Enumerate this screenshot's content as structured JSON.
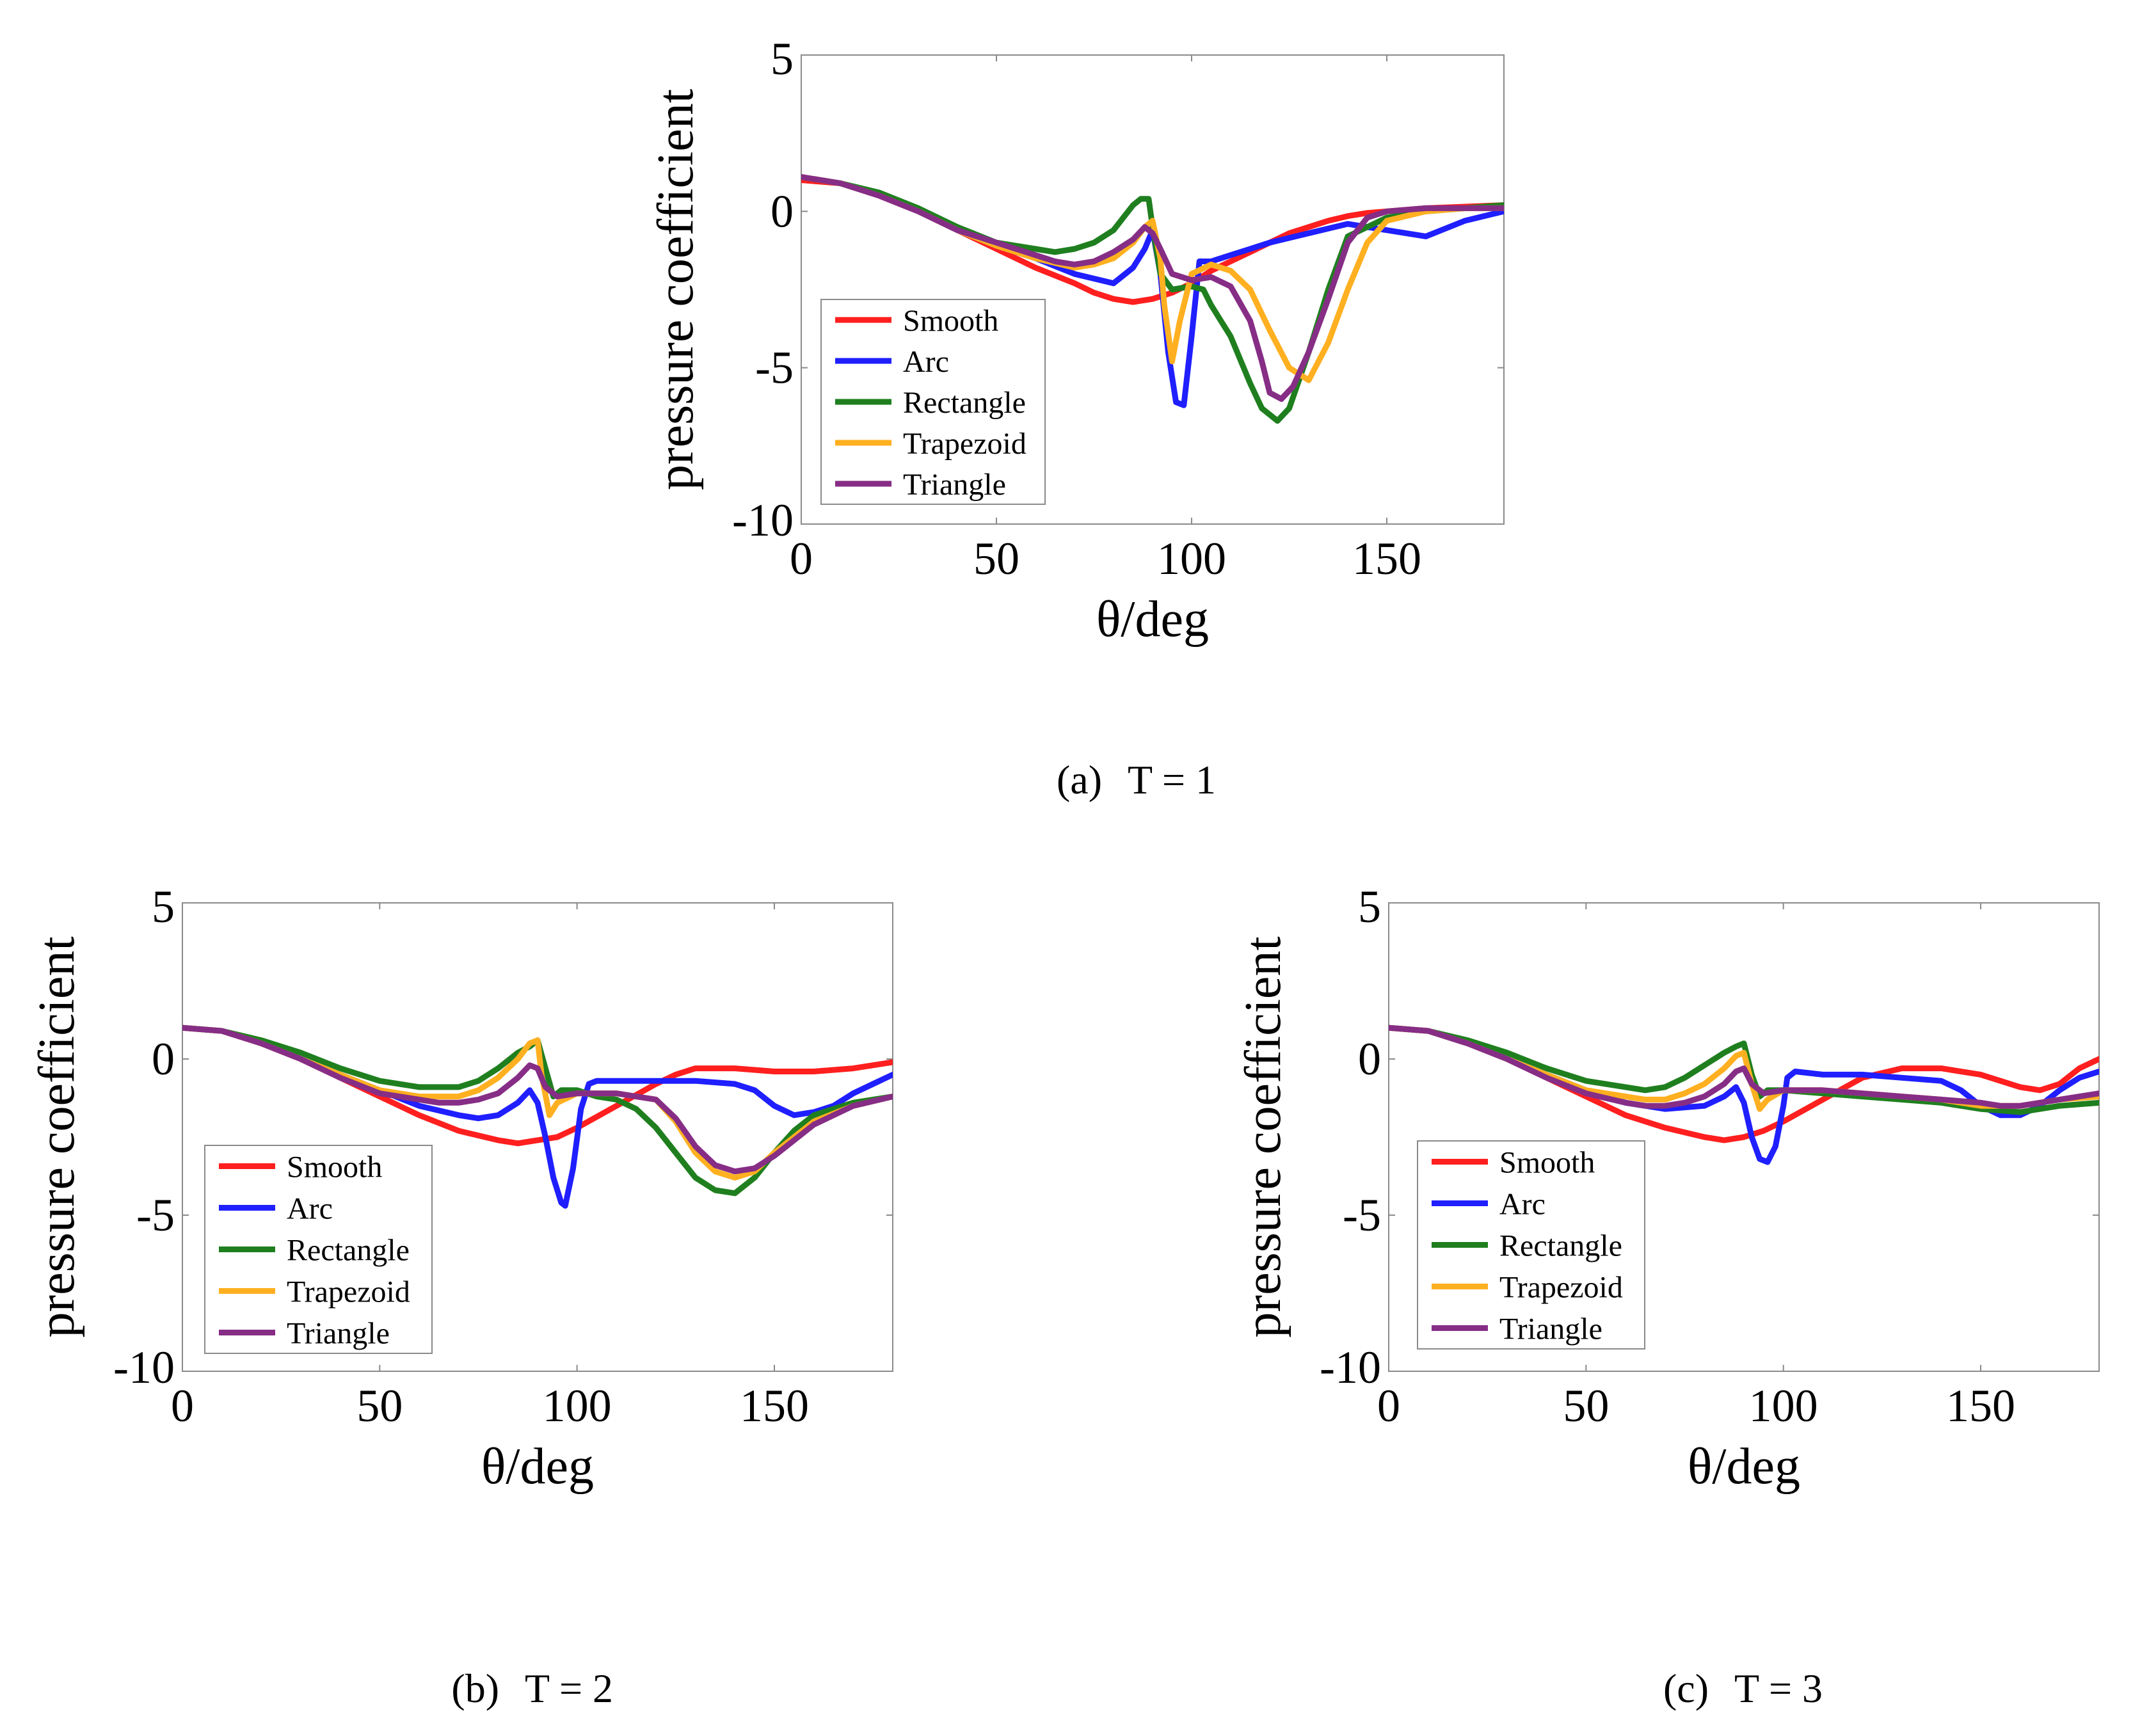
{
  "figure": {
    "legend_series_order": [
      "Smooth",
      "Arc",
      "Rectangle",
      "Trapezoid",
      "Triangle"
    ],
    "colors": {
      "Smooth": "#ff1f1f",
      "Arc": "#1f1fff",
      "Rectangle": "#1f7f1f",
      "Trapezoid": "#ffb020",
      "Triangle": "#862d86"
    }
  },
  "chart_data": [
    {
      "panel": "a",
      "type": "line",
      "caption_tag": "(a)",
      "caption_text": "T = 1",
      "xlabel": "θ/deg",
      "ylabel": "pressure coefficient",
      "xlim": [
        0,
        180
      ],
      "ylim": [
        -10,
        5
      ],
      "xticks": [
        0,
        50,
        100,
        150
      ],
      "yticks": [
        5,
        0,
        -5,
        -10
      ],
      "legend": "bottom-left",
      "series": [
        {
          "name": "Smooth",
          "x": [
            0,
            10,
            20,
            30,
            40,
            50,
            60,
            70,
            75,
            80,
            85,
            90,
            95,
            100,
            105,
            110,
            115,
            120,
            125,
            130,
            135,
            140,
            145,
            150,
            160,
            170,
            180
          ],
          "y": [
            1,
            0.9,
            0.5,
            0,
            -0.6,
            -1.2,
            -1.8,
            -2.3,
            -2.6,
            -2.8,
            -2.9,
            -2.8,
            -2.6,
            -2.3,
            -1.9,
            -1.6,
            -1.3,
            -1.0,
            -0.7,
            -0.5,
            -0.3,
            -0.15,
            -0.05,
            0,
            0.1,
            0.15,
            0.2
          ]
        },
        {
          "name": "Arc",
          "x": [
            0,
            10,
            20,
            30,
            40,
            50,
            60,
            70,
            80,
            85,
            88,
            90,
            92,
            94,
            96,
            98,
            100,
            102,
            105,
            110,
            115,
            120,
            130,
            140,
            150,
            160,
            170,
            180
          ],
          "y": [
            1.1,
            0.9,
            0.5,
            0,
            -0.6,
            -1.1,
            -1.5,
            -2.0,
            -2.3,
            -1.8,
            -1.2,
            -0.6,
            -2.0,
            -4.5,
            -6.1,
            -6.2,
            -4.0,
            -1.6,
            -1.6,
            -1.4,
            -1.2,
            -1.0,
            -0.7,
            -0.4,
            -0.6,
            -0.8,
            -0.3,
            0
          ]
        },
        {
          "name": "Rectangle",
          "x": [
            0,
            10,
            20,
            30,
            40,
            50,
            60,
            65,
            70,
            75,
            80,
            85,
            87,
            89,
            90,
            92,
            95,
            100,
            103,
            105,
            110,
            115,
            118,
            122,
            125,
            130,
            135,
            140,
            150,
            160,
            170,
            180
          ],
          "y": [
            1.1,
            0.9,
            0.6,
            0.1,
            -0.5,
            -1.0,
            -1.2,
            -1.3,
            -1.2,
            -1.0,
            -0.6,
            0.2,
            0.4,
            0.4,
            -0.5,
            -2.0,
            -2.5,
            -2.4,
            -2.5,
            -3.0,
            -4.0,
            -5.5,
            -6.3,
            -6.7,
            -6.3,
            -4.5,
            -2.5,
            -0.8,
            -0.2,
            0,
            0.1,
            0.2
          ]
        },
        {
          "name": "Trapezoid",
          "x": [
            0,
            10,
            20,
            30,
            40,
            50,
            60,
            70,
            75,
            80,
            85,
            88,
            90,
            92,
            93,
            95,
            97,
            100,
            105,
            110,
            115,
            120,
            125,
            130,
            135,
            140,
            145,
            150,
            160,
            170,
            180
          ],
          "y": [
            1.1,
            0.9,
            0.5,
            0,
            -0.6,
            -1.1,
            -1.5,
            -1.8,
            -1.7,
            -1.5,
            -1.0,
            -0.5,
            -0.3,
            -1.5,
            -3.0,
            -4.8,
            -3.5,
            -2.0,
            -1.7,
            -1.9,
            -2.5,
            -3.8,
            -5.0,
            -5.4,
            -4.2,
            -2.5,
            -1.0,
            -0.3,
            0,
            0.1,
            0.1
          ]
        },
        {
          "name": "Triangle",
          "x": [
            0,
            10,
            20,
            30,
            40,
            50,
            60,
            65,
            70,
            75,
            80,
            85,
            88,
            90,
            92,
            95,
            100,
            105,
            110,
            115,
            118,
            120,
            123,
            126,
            130,
            135,
            140,
            145,
            150,
            160,
            170,
            180
          ],
          "y": [
            1.1,
            0.9,
            0.5,
            0,
            -0.6,
            -1.0,
            -1.4,
            -1.6,
            -1.7,
            -1.6,
            -1.3,
            -0.9,
            -0.5,
            -0.7,
            -1.2,
            -2.0,
            -2.2,
            -2.1,
            -2.4,
            -3.5,
            -4.8,
            -5.8,
            -6.0,
            -5.6,
            -4.5,
            -2.8,
            -1.0,
            -0.2,
            0,
            0.1,
            0.1,
            0.1
          ]
        }
      ]
    },
    {
      "panel": "b",
      "type": "line",
      "caption_tag": "(b)",
      "caption_text": "T = 2",
      "xlabel": "θ/deg",
      "ylabel": "pressure coefficient",
      "xlim": [
        0,
        180
      ],
      "ylim": [
        -10,
        5
      ],
      "xticks": [
        0,
        50,
        100,
        150
      ],
      "yticks": [
        5,
        0,
        -5,
        -10
      ],
      "legend": "bottom-left",
      "series": [
        {
          "name": "Smooth",
          "x": [
            0,
            10,
            20,
            30,
            40,
            50,
            60,
            70,
            80,
            85,
            90,
            95,
            100,
            110,
            120,
            125,
            130,
            140,
            150,
            160,
            170,
            180
          ],
          "y": [
            1,
            0.9,
            0.5,
            0,
            -0.6,
            -1.2,
            -1.8,
            -2.3,
            -2.6,
            -2.7,
            -2.6,
            -2.5,
            -2.2,
            -1.5,
            -0.8,
            -0.5,
            -0.3,
            -0.3,
            -0.4,
            -0.4,
            -0.3,
            -0.1
          ]
        },
        {
          "name": "Arc",
          "x": [
            0,
            10,
            20,
            30,
            40,
            50,
            60,
            70,
            75,
            80,
            85,
            88,
            90,
            92,
            94,
            96,
            97,
            99,
            101,
            103,
            105,
            110,
            120,
            130,
            140,
            145,
            150,
            155,
            160,
            165,
            170,
            175,
            180
          ],
          "y": [
            1,
            0.9,
            0.5,
            0,
            -0.5,
            -1.0,
            -1.5,
            -1.8,
            -1.9,
            -1.8,
            -1.4,
            -1.0,
            -1.4,
            -2.5,
            -3.8,
            -4.6,
            -4.7,
            -3.5,
            -1.6,
            -0.8,
            -0.7,
            -0.7,
            -0.7,
            -0.7,
            -0.8,
            -1.0,
            -1.5,
            -1.8,
            -1.7,
            -1.5,
            -1.1,
            -0.8,
            -0.5
          ]
        },
        {
          "name": "Rectangle",
          "x": [
            0,
            10,
            20,
            30,
            40,
            50,
            60,
            65,
            70,
            75,
            80,
            85,
            88,
            90,
            92,
            94,
            96,
            100,
            105,
            110,
            115,
            120,
            125,
            130,
            135,
            140,
            145,
            150,
            155,
            160,
            170,
            180
          ],
          "y": [
            1,
            0.9,
            0.6,
            0.2,
            -0.3,
            -0.7,
            -0.9,
            -0.9,
            -0.9,
            -0.7,
            -0.3,
            0.2,
            0.4,
            0.6,
            -0.3,
            -1.2,
            -1.0,
            -1.0,
            -1.2,
            -1.3,
            -1.6,
            -2.2,
            -3.0,
            -3.8,
            -4.2,
            -4.3,
            -3.8,
            -3.0,
            -2.3,
            -1.8,
            -1.4,
            -1.2
          ]
        },
        {
          "name": "Trapezoid",
          "x": [
            0,
            10,
            20,
            30,
            40,
            50,
            60,
            65,
            70,
            75,
            80,
            85,
            88,
            90,
            91,
            93,
            95,
            100,
            110,
            120,
            125,
            130,
            135,
            140,
            145,
            150,
            160,
            170,
            180
          ],
          "y": [
            1,
            0.9,
            0.5,
            0,
            -0.5,
            -1.0,
            -1.2,
            -1.2,
            -1.2,
            -1.0,
            -0.6,
            0,
            0.5,
            0.6,
            -0.5,
            -1.8,
            -1.4,
            -1.1,
            -1.1,
            -1.3,
            -2.0,
            -3.0,
            -3.6,
            -3.8,
            -3.6,
            -3.0,
            -2.0,
            -1.5,
            -1.2
          ]
        },
        {
          "name": "Triangle",
          "x": [
            0,
            10,
            20,
            30,
            40,
            50,
            60,
            65,
            70,
            75,
            80,
            85,
            88,
            90,
            92,
            95,
            100,
            110,
            120,
            125,
            130,
            135,
            140,
            145,
            150,
            160,
            170,
            180
          ],
          "y": [
            1,
            0.9,
            0.5,
            0,
            -0.6,
            -1.1,
            -1.3,
            -1.4,
            -1.4,
            -1.3,
            -1.1,
            -0.6,
            -0.2,
            -0.3,
            -0.9,
            -1.2,
            -1.1,
            -1.1,
            -1.3,
            -1.9,
            -2.8,
            -3.4,
            -3.6,
            -3.5,
            -3.1,
            -2.1,
            -1.5,
            -1.2
          ]
        }
      ]
    },
    {
      "panel": "c",
      "type": "line",
      "caption_tag": "(c)",
      "caption_text": "T = 3",
      "xlabel": "θ/deg",
      "ylabel": "pressure coefficient",
      "xlim": [
        0,
        180
      ],
      "ylim": [
        -10,
        5
      ],
      "xticks": [
        0,
        50,
        100,
        150
      ],
      "yticks": [
        5,
        0,
        -5,
        -10
      ],
      "legend": "bottom-left",
      "series": [
        {
          "name": "Smooth",
          "x": [
            0,
            10,
            20,
            30,
            40,
            50,
            60,
            70,
            80,
            85,
            90,
            95,
            100,
            110,
            120,
            130,
            140,
            150,
            160,
            165,
            170,
            175,
            180
          ],
          "y": [
            1,
            0.9,
            0.5,
            0,
            -0.6,
            -1.2,
            -1.8,
            -2.2,
            -2.5,
            -2.6,
            -2.5,
            -2.3,
            -2.0,
            -1.3,
            -0.6,
            -0.3,
            -0.3,
            -0.5,
            -0.9,
            -1.0,
            -0.8,
            -0.3,
            0
          ]
        },
        {
          "name": "Arc",
          "x": [
            0,
            10,
            20,
            30,
            40,
            50,
            60,
            70,
            80,
            85,
            88,
            90,
            92,
            94,
            96,
            98,
            100,
            101,
            103,
            110,
            120,
            130,
            140,
            145,
            150,
            155,
            160,
            165,
            170,
            175,
            180
          ],
          "y": [
            1,
            0.9,
            0.5,
            0,
            -0.5,
            -1.0,
            -1.4,
            -1.6,
            -1.5,
            -1.2,
            -0.9,
            -1.4,
            -2.5,
            -3.2,
            -3.3,
            -2.8,
            -1.5,
            -0.6,
            -0.4,
            -0.5,
            -0.5,
            -0.6,
            -0.7,
            -1.0,
            -1.5,
            -1.8,
            -1.8,
            -1.5,
            -1.0,
            -0.6,
            -0.4
          ]
        },
        {
          "name": "Rectangle",
          "x": [
            0,
            10,
            20,
            30,
            40,
            50,
            60,
            65,
            70,
            75,
            80,
            85,
            88,
            90,
            92,
            94,
            96,
            100,
            110,
            120,
            130,
            140,
            150,
            160,
            170,
            180
          ],
          "y": [
            1,
            0.9,
            0.6,
            0.2,
            -0.3,
            -0.7,
            -0.9,
            -1.0,
            -0.9,
            -0.6,
            -0.2,
            0.2,
            0.4,
            0.5,
            -0.5,
            -1.2,
            -1.0,
            -1.0,
            -1.1,
            -1.2,
            -1.3,
            -1.4,
            -1.6,
            -1.7,
            -1.5,
            -1.4
          ]
        },
        {
          "name": "Trapezoid",
          "x": [
            0,
            10,
            20,
            30,
            40,
            50,
            60,
            65,
            70,
            75,
            80,
            85,
            88,
            90,
            92,
            94,
            96,
            100,
            110,
            120,
            130,
            140,
            150,
            160,
            170,
            180
          ],
          "y": [
            1,
            0.9,
            0.5,
            0,
            -0.5,
            -1.0,
            -1.2,
            -1.3,
            -1.3,
            -1.1,
            -0.8,
            -0.3,
            0.1,
            0.2,
            -0.8,
            -1.6,
            -1.3,
            -1.0,
            -1.0,
            -1.1,
            -1.2,
            -1.3,
            -1.5,
            -1.5,
            -1.3,
            -1.2
          ]
        },
        {
          "name": "Triangle",
          "x": [
            0,
            10,
            20,
            30,
            40,
            50,
            60,
            65,
            70,
            75,
            80,
            85,
            88,
            90,
            92,
            95,
            100,
            110,
            120,
            130,
            140,
            150,
            155,
            160,
            170,
            180
          ],
          "y": [
            1,
            0.9,
            0.5,
            0,
            -0.6,
            -1.1,
            -1.4,
            -1.5,
            -1.5,
            -1.4,
            -1.2,
            -0.8,
            -0.4,
            -0.3,
            -0.8,
            -1.1,
            -1.0,
            -1.0,
            -1.1,
            -1.2,
            -1.3,
            -1.4,
            -1.5,
            -1.5,
            -1.3,
            -1.1
          ]
        }
      ]
    }
  ]
}
